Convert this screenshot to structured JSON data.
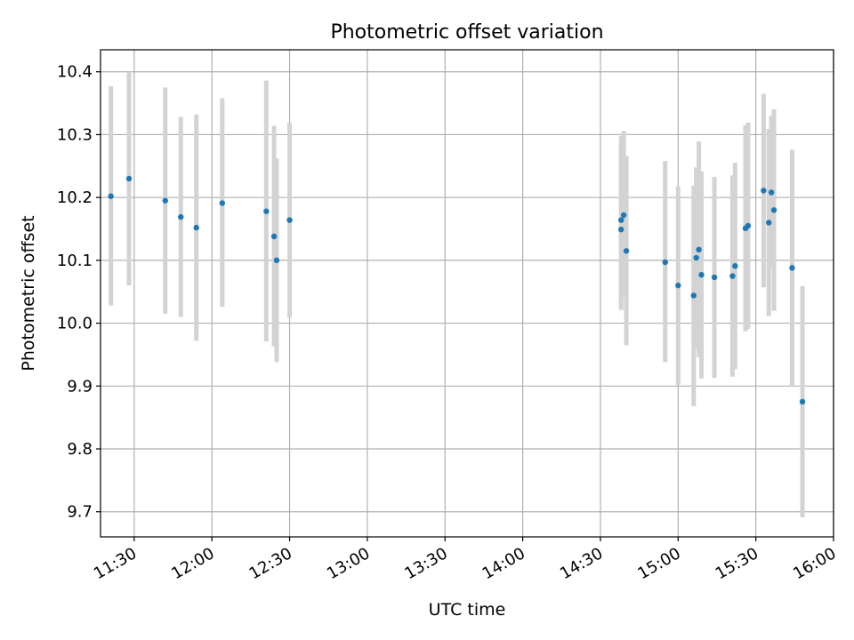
{
  "chart_data": {
    "type": "scatter",
    "title": "Photometric offset variation",
    "xlabel": "UTC time",
    "ylabel": "Photometric offset",
    "x_is_time": true,
    "xlim": [
      "11:17",
      "16:00"
    ],
    "ylim": [
      9.66,
      10.435
    ],
    "x_ticks": [
      "11:30",
      "12:00",
      "12:30",
      "13:00",
      "13:30",
      "14:00",
      "14:30",
      "15:00",
      "15:30",
      "16:00"
    ],
    "y_ticks": [
      "9.7",
      "9.8",
      "9.9",
      "10.0",
      "10.1",
      "10.2",
      "10.3",
      "10.4"
    ],
    "grid": true,
    "legend": "none",
    "colors": {
      "point": "#1f77b4",
      "errorbar": "#d3d3d3",
      "grid": "#b0b0b0"
    },
    "points": [
      {
        "x": "11:21",
        "y": 10.202,
        "y_low": 10.028,
        "y_high": 10.377
      },
      {
        "x": "11:28",
        "y": 10.23,
        "y_low": 10.06,
        "y_high": 10.4
      },
      {
        "x": "11:42",
        "y": 10.195,
        "y_low": 10.015,
        "y_high": 10.375
      },
      {
        "x": "11:48",
        "y": 10.169,
        "y_low": 10.01,
        "y_high": 10.328
      },
      {
        "x": "11:54",
        "y": 10.152,
        "y_low": 9.972,
        "y_high": 10.332
      },
      {
        "x": "12:04",
        "y": 10.191,
        "y_low": 10.026,
        "y_high": 10.358
      },
      {
        "x": "12:21",
        "y": 10.178,
        "y_low": 9.971,
        "y_high": 10.386
      },
      {
        "x": "12:24",
        "y": 10.138,
        "y_low": 9.963,
        "y_high": 10.314
      },
      {
        "x": "12:25",
        "y": 10.1,
        "y_low": 9.938,
        "y_high": 10.262
      },
      {
        "x": "12:30",
        "y": 10.164,
        "y_low": 10.009,
        "y_high": 10.319
      },
      {
        "x": "14:38",
        "y": 10.149,
        "y_low": 10.021,
        "y_high": 10.283
      },
      {
        "x": "14:38",
        "y": 10.164,
        "y_low": 10.025,
        "y_high": 10.298
      },
      {
        "x": "14:39",
        "y": 10.172,
        "y_low": 10.041,
        "y_high": 10.306
      },
      {
        "x": "14:40",
        "y": 10.115,
        "y_low": 9.965,
        "y_high": 10.266
      },
      {
        "x": "14:55",
        "y": 10.097,
        "y_low": 9.938,
        "y_high": 10.258
      },
      {
        "x": "15:00",
        "y": 10.06,
        "y_low": 9.902,
        "y_high": 10.218
      },
      {
        "x": "15:06",
        "y": 10.044,
        "y_low": 9.868,
        "y_high": 10.219
      },
      {
        "x": "15:07",
        "y": 10.104,
        "y_low": 9.96,
        "y_high": 10.248
      },
      {
        "x": "15:08",
        "y": 10.117,
        "y_low": 9.946,
        "y_high": 10.289
      },
      {
        "x": "15:09",
        "y": 10.077,
        "y_low": 9.912,
        "y_high": 10.242
      },
      {
        "x": "15:14",
        "y": 10.073,
        "y_low": 9.913,
        "y_high": 10.233
      },
      {
        "x": "15:21",
        "y": 10.075,
        "y_low": 9.915,
        "y_high": 10.235
      },
      {
        "x": "15:22",
        "y": 10.091,
        "y_low": 9.927,
        "y_high": 10.255
      },
      {
        "x": "15:26",
        "y": 10.151,
        "y_low": 9.987,
        "y_high": 10.315
      },
      {
        "x": "15:27",
        "y": 10.155,
        "y_low": 9.991,
        "y_high": 10.319
      },
      {
        "x": "15:33",
        "y": 10.211,
        "y_low": 10.057,
        "y_high": 10.365
      },
      {
        "x": "15:35",
        "y": 10.16,
        "y_low": 10.011,
        "y_high": 10.309
      },
      {
        "x": "15:36",
        "y": 10.208,
        "y_low": 10.086,
        "y_high": 10.33
      },
      {
        "x": "15:37",
        "y": 10.18,
        "y_low": 10.02,
        "y_high": 10.34
      },
      {
        "x": "15:44",
        "y": 10.088,
        "y_low": 9.9,
        "y_high": 10.276
      },
      {
        "x": "15:48",
        "y": 9.875,
        "y_low": 9.691,
        "y_high": 10.059
      }
    ]
  }
}
